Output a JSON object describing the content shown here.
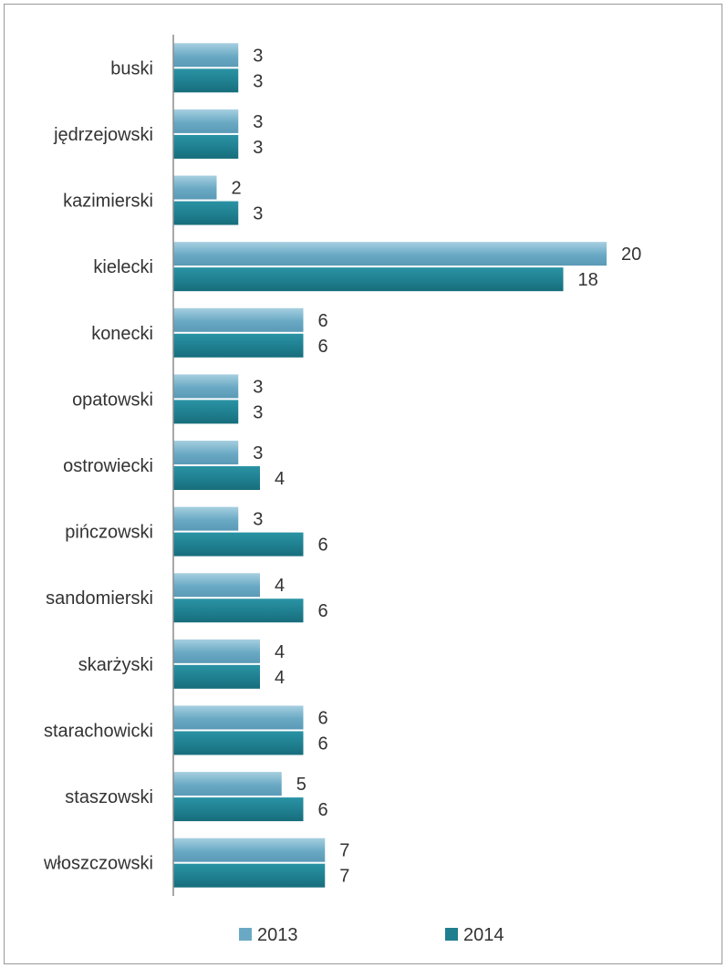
{
  "chart_data": {
    "type": "bar",
    "orientation": "horizontal",
    "title": "",
    "xlabel": "",
    "ylabel": "",
    "categories": [
      "buski",
      "jędrzejowski",
      "kazimierski",
      "kielecki",
      "konecki",
      "opatowski",
      "ostrowiecki",
      "pińczowski",
      "sandomierski",
      "skarżyski",
      "starachowicki",
      "staszowski",
      "włoszczowski"
    ],
    "series": [
      {
        "name": "2013",
        "values": [
          3,
          3,
          2,
          20,
          6,
          3,
          3,
          3,
          4,
          4,
          6,
          5,
          7
        ],
        "color": "#6aa9c4"
      },
      {
        "name": "2014",
        "values": [
          3,
          3,
          3,
          18,
          6,
          3,
          4,
          6,
          6,
          4,
          6,
          6,
          7
        ],
        "color": "#1f7f8f"
      }
    ],
    "xlim": [
      0,
      20
    ],
    "grid": false,
    "data_labels": true,
    "legend": "bottom"
  }
}
